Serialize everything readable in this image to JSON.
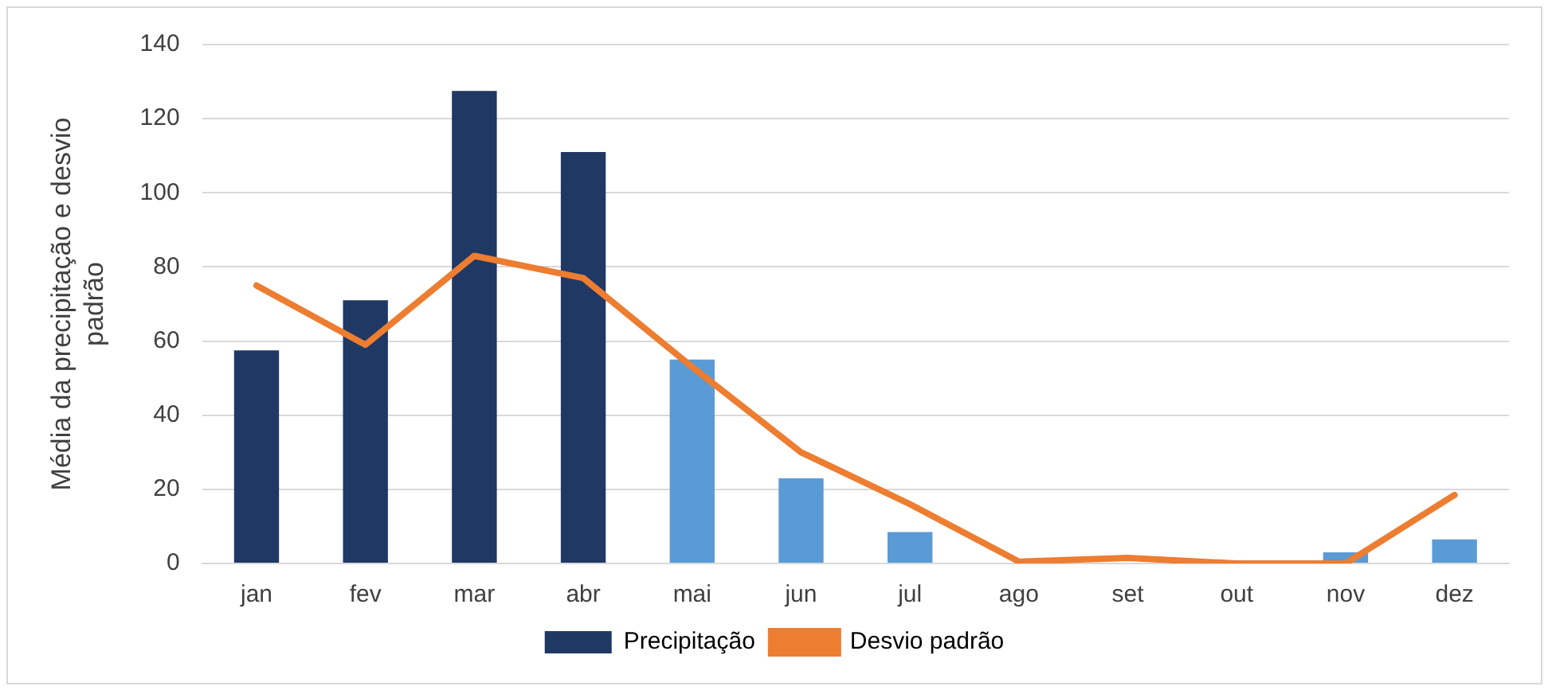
{
  "chart_data": {
    "type": "bar",
    "ylabel": "Média da precipitação e desvio padrão",
    "categories": [
      "jan",
      "fev",
      "mar",
      "abr",
      "mai",
      "jun",
      "jul",
      "ago",
      "set",
      "out",
      "nov",
      "dez"
    ],
    "series": [
      {
        "name": "Precipitação",
        "color": "#203864",
        "colors": [
          "#203864",
          "#203864",
          "#203864",
          "#203864",
          "#5b9bd5",
          "#5b9bd5",
          "#5b9bd5",
          "#5b9bd5",
          "#5b9bd5",
          "#5b9bd5",
          "#5b9bd5",
          "#5b9bd5"
        ],
        "values": [
          57.5,
          71,
          127.5,
          111,
          55,
          23,
          8.5,
          null,
          0,
          0,
          3,
          6.5
        ]
      },
      {
        "name": "Desvio padrão",
        "type": "line",
        "color": "#ed7d31",
        "values": [
          75,
          59,
          83,
          77,
          53,
          30,
          16,
          0.5,
          1.5,
          0,
          0,
          18.5
        ]
      }
    ],
    "ylim": [
      0,
      140
    ],
    "yticks": [
      0,
      20,
      40,
      60,
      80,
      100,
      120,
      140
    ],
    "grid": "y",
    "legend": "bottom",
    "marker": "none",
    "line_style": "solid"
  }
}
